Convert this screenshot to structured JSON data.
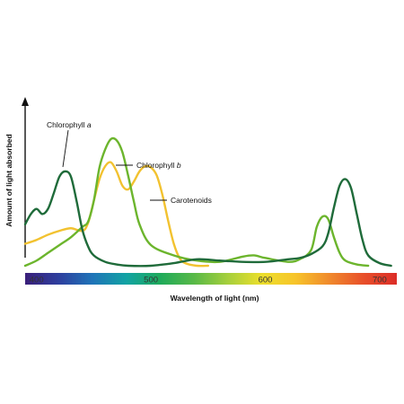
{
  "chart_data": {
    "type": "line",
    "title": "",
    "xlabel": "Wavelength of light (nm)",
    "ylabel": "Amount of light absorbed",
    "xlim": [
      390,
      715
    ],
    "ylim": [
      0,
      1
    ],
    "y_ticks_shown": false,
    "x_ticks": [
      {
        "value": 400,
        "label": "400"
      },
      {
        "value": 500,
        "label": "500"
      },
      {
        "value": 600,
        "label": "600"
      },
      {
        "value": 700,
        "label": "700"
      }
    ],
    "spectrum_bar": {
      "colors": [
        "#3a1f7a",
        "#2e3f9e",
        "#1f74b8",
        "#12a3a3",
        "#1faa5a",
        "#58b947",
        "#a6cf3c",
        "#ecdf2c",
        "#f7c42a",
        "#f08a2c",
        "#e8502a",
        "#dc2d28"
      ]
    },
    "series": [
      {
        "key": "chl_a",
        "name": "Chlorophyll a",
        "name_main": "Chlorophyll ",
        "name_ital": "a",
        "color": "#1f6b3a",
        "x": [
          390,
          395,
          400,
          405,
          410,
          415,
          420,
          425,
          430,
          435,
          440,
          445,
          450,
          460,
          470,
          480,
          500,
          520,
          540,
          560,
          580,
          600,
          620,
          630,
          640,
          650,
          655,
          660,
          665,
          670,
          675,
          680,
          685,
          690,
          700,
          710
        ],
        "y": [
          0.32,
          0.4,
          0.44,
          0.4,
          0.44,
          0.56,
          0.69,
          0.73,
          0.69,
          0.5,
          0.28,
          0.15,
          0.08,
          0.03,
          0.01,
          0.0,
          0.0,
          0.02,
          0.05,
          0.04,
          0.03,
          0.03,
          0.05,
          0.06,
          0.09,
          0.15,
          0.25,
          0.45,
          0.62,
          0.67,
          0.6,
          0.4,
          0.2,
          0.08,
          0.02,
          0.0
        ]
      },
      {
        "key": "chl_b",
        "name": "Chlorophyll b",
        "name_main": "Chlorophyll ",
        "name_ital": "b",
        "color": "#6cb52d",
        "x": [
          390,
          400,
          410,
          420,
          430,
          440,
          445,
          450,
          455,
          460,
          465,
          470,
          475,
          480,
          485,
          490,
          500,
          520,
          540,
          560,
          580,
          590,
          600,
          620,
          630,
          640,
          645,
          650,
          655,
          660,
          665,
          670,
          680,
          690
        ],
        "y": [
          0.0,
          0.04,
          0.1,
          0.16,
          0.22,
          0.3,
          0.34,
          0.5,
          0.76,
          0.9,
          0.98,
          0.97,
          0.88,
          0.7,
          0.5,
          0.32,
          0.16,
          0.08,
          0.04,
          0.03,
          0.07,
          0.08,
          0.06,
          0.03,
          0.05,
          0.12,
          0.3,
          0.38,
          0.36,
          0.22,
          0.1,
          0.04,
          0.01,
          0.0
        ]
      },
      {
        "key": "carot",
        "name": "Carotenoids",
        "color": "#f2c230",
        "x": [
          390,
          400,
          410,
          420,
          430,
          440,
          445,
          450,
          455,
          460,
          465,
          470,
          475,
          480,
          485,
          490,
          495,
          500,
          505,
          510,
          515,
          520,
          525,
          530,
          540,
          550
        ],
        "y": [
          0.17,
          0.2,
          0.24,
          0.27,
          0.29,
          0.27,
          0.33,
          0.5,
          0.67,
          0.77,
          0.8,
          0.73,
          0.62,
          0.59,
          0.65,
          0.73,
          0.77,
          0.76,
          0.7,
          0.55,
          0.35,
          0.17,
          0.06,
          0.02,
          0.0,
          0.0
        ]
      }
    ],
    "annotations": [
      {
        "series": "chl_a",
        "text_main": "Chlorophyll ",
        "text_ital": "a"
      },
      {
        "series": "chl_b",
        "text_main": "Chlorophyll ",
        "text_ital": "b"
      },
      {
        "series": "carot",
        "text": "Carotenoids"
      }
    ]
  }
}
